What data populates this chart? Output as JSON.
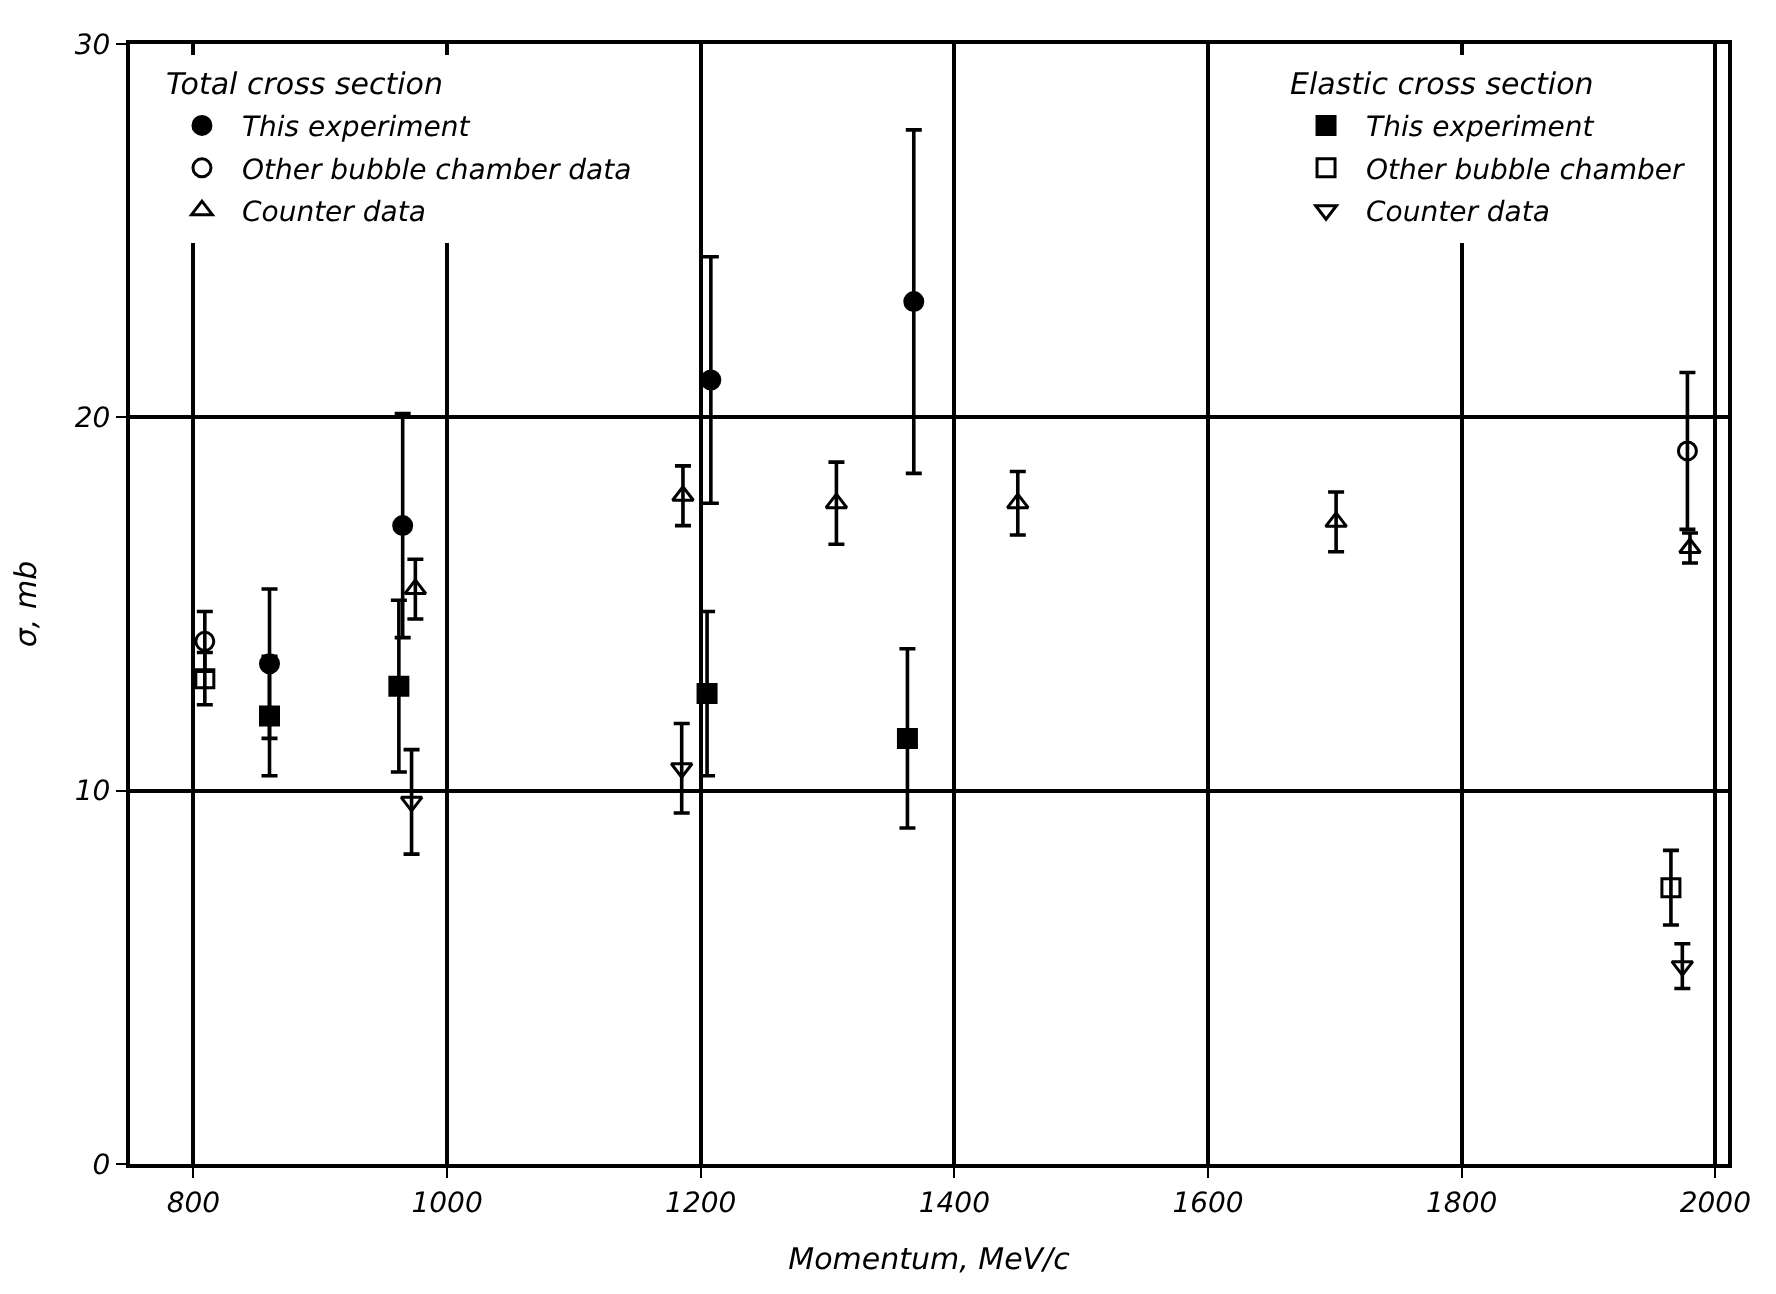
{
  "chart_data": {
    "type": "scatter",
    "xlabel": "Momentum, MeV/c",
    "ylabel": "σ, mb",
    "legend_title": [
      "Total cross section",
      "Elastic cross section"
    ],
    "xlim": [
      750,
      2010
    ],
    "xticks": [
      800,
      1000,
      1200,
      1400,
      1600,
      1800,
      2000
    ],
    "ylim": [
      0,
      30
    ],
    "yticks": [
      0,
      10,
      20,
      30
    ],
    "grid": true,
    "legend": "top",
    "series": [
      {
        "name": "This experiment",
        "color": "#000000",
        "marker": "circle",
        "x": [
          860,
          965,
          1208,
          1368
        ],
        "values": [
          13.4,
          17.1,
          21.0,
          23.1
        ],
        "errors": [
          2.0,
          3.0,
          3.3,
          4.6
        ]
      },
      {
        "name": "Other bubble chamber data",
        "color": "#000000",
        "marker": "circle-open",
        "x": [
          809,
          1978
        ],
        "values": [
          14.0,
          19.1
        ],
        "errors": [
          0.8,
          2.1
        ]
      },
      {
        "name": "Counter data",
        "color": "#000000",
        "marker": "triangle-open",
        "x": [
          975,
          1186,
          1307,
          1450,
          1701,
          1980
        ],
        "values": [
          15.4,
          17.9,
          17.7,
          17.7,
          17.2,
          16.5
        ],
        "errors": [
          0.8,
          0.8,
          1.1,
          0.85,
          0.8,
          0.4
        ]
      },
      {
        "name": "This experiment",
        "color": "#000000",
        "marker": "square",
        "x": [
          860,
          962,
          1205,
          1363
        ],
        "values": [
          12.0,
          12.8,
          12.6,
          11.4
        ],
        "errors": [
          1.6,
          2.3,
          2.2,
          2.4
        ]
      },
      {
        "name": "Other bubble chamber",
        "color": "#000000",
        "marker": "square-open",
        "x": [
          809,
          1965
        ],
        "values": [
          13.0,
          7.4
        ],
        "errors": [
          0.7,
          1.0
        ]
      },
      {
        "name": "Counter data",
        "color": "#000000",
        "marker": "triangle-down-open",
        "x": [
          972,
          1185,
          1974
        ],
        "values": [
          9.7,
          10.6,
          5.3
        ],
        "errors": [
          1.4,
          1.2,
          0.6
        ]
      }
    ]
  }
}
